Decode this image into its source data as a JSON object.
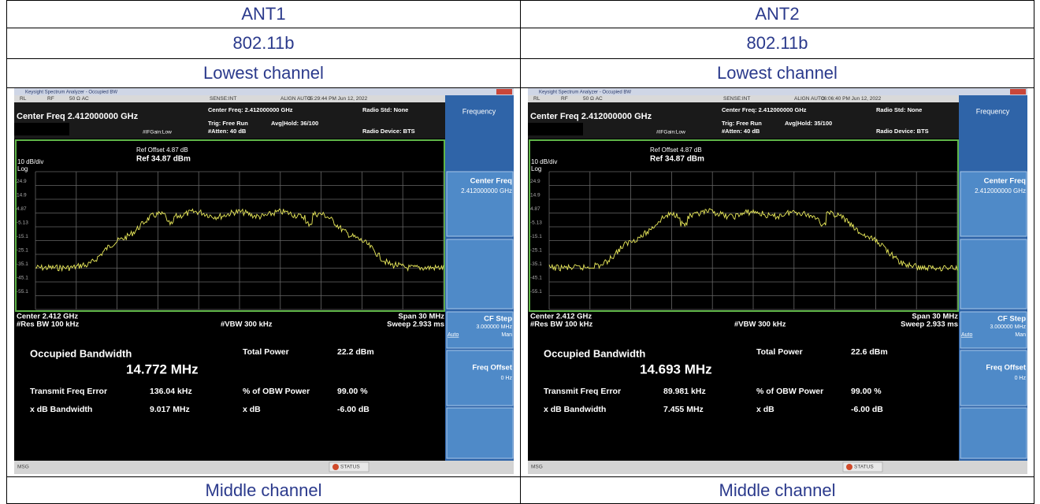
{
  "columns": [
    {
      "antenna": "ANT1",
      "mode": "802.11b",
      "channel": "Lowest channel",
      "next_channel": "Middle channel",
      "screen": {
        "window_title": "Keysight Spectrum Analyzer - Occupied BW",
        "top_bar": [
          "RL",
          "RF",
          "50 Ω  AC",
          "SENSE:INT",
          "ALIGN AUTO",
          "05:29:44 PM Jun 12, 2022"
        ],
        "center_freq": "Center Freq 2.412000000 GHz",
        "trig": [
          "Center Freq: 2.412000000 GHz",
          "Trig: Free Run",
          "#Atten: 40 dB"
        ],
        "avg_hold": "Avg|Hold: 36/100",
        "if_gain": "#IFGain:Low",
        "radio_std": "Radio Std: None",
        "radio_device": "Radio Device: BTS",
        "ref_offset": "Ref Offset 4.87 dB",
        "ref_level": "Ref 34.87 dBm",
        "scale": "10 dB/div",
        "log": "Log",
        "y_labels": [
          "24.9",
          "14.9",
          "4.87",
          "-5.13",
          "-15.1",
          "-25.1",
          "-35.1",
          "-45.1",
          "-55.1"
        ],
        "center": "Center  2.412 GHz",
        "res_bw": "#Res BW  100 kHz",
        "vbw": "#VBW  300 kHz",
        "span": "Span 30 MHz",
        "sweep": "Sweep  2.933 ms",
        "results": {
          "obw_label": "Occupied Bandwidth",
          "obw_value": "14.772 MHz",
          "total_power_label": "Total Power",
          "total_power": "22.2 dBm",
          "tfe_label": "Transmit Freq Error",
          "tfe": "136.04 kHz",
          "obw_power_label": "% of OBW Power",
          "obw_power": "99.00 %",
          "xdb_bw_label": "x dB Bandwidth",
          "xdb_bw": "9.017 MHz",
          "xdb_label": "x dB",
          "xdb": "-6.00 dB"
        },
        "softkeys": {
          "menu": "Frequency",
          "center_freq": "Center Freq",
          "center_freq_value": "2.412000000 GHz",
          "cf_step": "CF Step",
          "cf_step_value": "3.000000 MHz",
          "auto": "Auto",
          "man": "Man",
          "freq_offset": "Freq Offset",
          "freq_offset_value": "0 Hz"
        },
        "msg": "MSG",
        "status": "STATUS"
      }
    },
    {
      "antenna": "ANT2",
      "mode": "802.11b",
      "channel": "Lowest channel",
      "next_channel": "Middle channel",
      "screen": {
        "window_title": "Keysight Spectrum Analyzer - Occupied BW",
        "top_bar": [
          "RL",
          "RF",
          "50 Ω  AC",
          "SENSE:INT",
          "ALIGN AUTO",
          "06:06:40 PM Jun 12, 2022"
        ],
        "center_freq": "Center Freq 2.412000000 GHz",
        "trig": [
          "Center Freq: 2.412000000 GHz",
          "Trig: Free Run",
          "#Atten: 40 dB"
        ],
        "avg_hold": "Avg|Hold: 35/100",
        "if_gain": "#IFGain:Low",
        "radio_std": "Radio Std: None",
        "radio_device": "Radio Device: BTS",
        "ref_offset": "Ref Offset 4.87 dB",
        "ref_level": "Ref 34.87 dBm",
        "scale": "10 dB/div",
        "log": "Log",
        "y_labels": [
          "24.9",
          "14.9",
          "4.87",
          "-5.13",
          "-15.1",
          "-25.1",
          "-35.1",
          "-45.1",
          "-55.1"
        ],
        "center": "Center  2.412 GHz",
        "res_bw": "#Res BW  100 kHz",
        "vbw": "#VBW  300 kHz",
        "span": "Span 30 MHz",
        "sweep": "Sweep  2.933 ms",
        "results": {
          "obw_label": "Occupied Bandwidth",
          "obw_value": "14.693 MHz",
          "total_power_label": "Total Power",
          "total_power": "22.6 dBm",
          "tfe_label": "Transmit Freq Error",
          "tfe": "89.981 kHz",
          "obw_power_label": "% of OBW Power",
          "obw_power": "99.00 %",
          "xdb_bw_label": "x dB Bandwidth",
          "xdb_bw": "7.455 MHz",
          "xdb_label": "x dB",
          "xdb": "-6.00 dB"
        },
        "softkeys": {
          "menu": "Frequency",
          "center_freq": "Center Freq",
          "center_freq_value": "2.412000000 GHz",
          "cf_step": "CF Step",
          "cf_step_value": "3.000000 MHz",
          "auto": "Auto",
          "man": "Man",
          "freq_offset": "Freq Offset",
          "freq_offset_value": "0 Hz"
        },
        "msg": "MSG",
        "status": "STATUS"
      }
    }
  ]
}
